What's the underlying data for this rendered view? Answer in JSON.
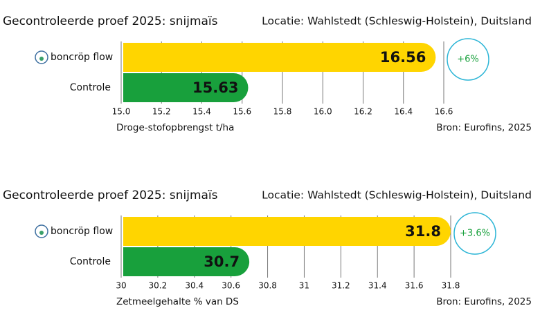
{
  "chart_data": [
    {
      "type": "bar",
      "orientation": "horizontal",
      "title": "Gecontroleerde proef 2025: snijmaïs",
      "subtitle": "Locatie: Wahlstedt (Schleswig-Holstein), Duitsland",
      "categories": [
        "boncröp flow",
        "Controle"
      ],
      "values": [
        16.56,
        15.63
      ],
      "colors": [
        "#ffd500",
        "#18a03c"
      ],
      "xlim": [
        15.0,
        16.6
      ],
      "xticks": [
        {
          "value": 15.0,
          "label": "15.0"
        },
        15.2,
        15.4,
        15.6,
        15.8,
        {
          "value": 16.0,
          "label": "16.0"
        },
        16.2,
        16.4,
        16.6
      ],
      "xlabel": "Droge-stofopbrengst t/ha",
      "source": "Bron: Eurofins, 2025",
      "annotation": "+6%",
      "grid": true
    },
    {
      "type": "bar",
      "orientation": "horizontal",
      "title": "Gecontroleerde proef 2025: snijmaïs",
      "subtitle": "Locatie: Wahlstedt (Schleswig-Holstein), Duitsland",
      "categories": [
        "boncröp flow",
        "Controle"
      ],
      "values": [
        31.8,
        30.7
      ],
      "colors": [
        "#ffd500",
        "#18a03c"
      ],
      "xlim": [
        30,
        31.8
      ],
      "xticks": [
        30,
        30.2,
        30.4,
        30.6,
        30.8,
        31,
        31.2,
        31.4,
        31.6,
        31.8
      ],
      "xlabel": "Zetmeelgehalte % van DS",
      "source": "Bron: Eurofins, 2025",
      "annotation": "+3.6%",
      "grid": true
    }
  ]
}
